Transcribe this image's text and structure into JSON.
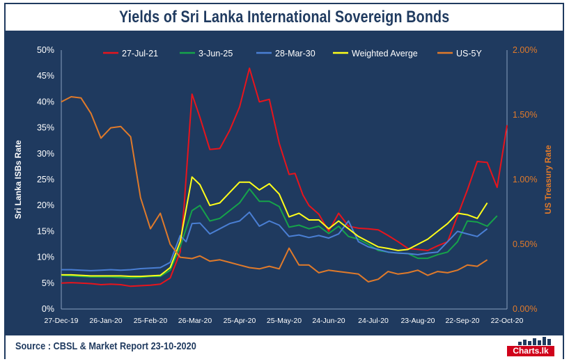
{
  "header": {
    "title": "Yields of Sri Lanka International Sovereign Bonds"
  },
  "footer": {
    "source": "Source : CBSL & Market Report 23-10-2020",
    "logo_text": "Charts.lk"
  },
  "colors": {
    "background": "#1f3a5f",
    "red": "#e8141c",
    "green": "#16a34a",
    "blue": "#4a7fd4",
    "yellow": "#ffff1a",
    "orange": "#e07a2a"
  },
  "chart_data": {
    "type": "line",
    "title": "Yields of Sri Lanka International Sovereign Bonds",
    "ylabel": "Sri Lanka ISBs Rate",
    "y2label": "US Treasury Rate",
    "ylim": [
      0,
      50
    ],
    "y2lim": [
      0,
      2.0
    ],
    "yticks": [
      "0%",
      "5%",
      "10%",
      "15%",
      "20%",
      "25%",
      "30%",
      "35%",
      "40%",
      "45%",
      "50%"
    ],
    "y2ticks": [
      "0.00%",
      "0.50%",
      "1.00%",
      "1.50%",
      "2.00%"
    ],
    "xticks": [
      "27-Dec-19",
      "26-Jan-20",
      "25-Feb-20",
      "26-Mar-20",
      "25-Apr-20",
      "25-May-20",
      "24-Jun-20",
      "24-Jul-20",
      "23-Aug-20",
      "22-Sep-20",
      "22-Oct-20"
    ],
    "legend_position": "top",
    "grid": false,
    "series": [
      {
        "name": "27-Jul-21",
        "color": "#e8141c",
        "axis": "left",
        "x": [
          0,
          5,
          10,
          15,
          20,
          25,
          30,
          35,
          40,
          45,
          50,
          55,
          60,
          62,
          66,
          70,
          75,
          80,
          85,
          90,
          95,
          100,
          105,
          110,
          115,
          118,
          122,
          125,
          130,
          135,
          140,
          145,
          150,
          155,
          160,
          165,
          170,
          175,
          180,
          185,
          190,
          195,
          200,
          205,
          210,
          215,
          220,
          225,
          230,
          235,
          240,
          245,
          250,
          255,
          260,
          265,
          270,
          275,
          280,
          285,
          290,
          295,
          300
        ],
        "values": [
          5.0,
          5.1,
          5.0,
          4.9,
          4.7,
          4.8,
          4.7,
          4.4,
          4.5,
          4.6,
          4.8,
          6.0,
          11.0,
          20.0,
          41.5,
          37.0,
          30.8,
          31.0,
          34.5,
          39.0,
          46.5,
          40.0,
          40.5,
          32.0,
          26.0,
          26.2,
          22.0,
          20.0,
          18.3,
          15.0,
          18.5,
          16.0,
          15.6,
          15.5,
          15.3,
          14.2,
          13.0,
          11.7,
          11.5,
          11.3,
          12.2,
          13.0,
          18.0,
          23.0,
          28.5,
          28.3,
          23.5,
          35.5,
          null,
          null,
          null,
          null,
          null,
          null,
          null,
          null,
          null,
          null,
          null,
          null,
          null,
          null,
          null
        ]
      },
      {
        "name": "3-Jun-25",
        "color": "#16a34a",
        "axis": "left",
        "x": [
          0,
          5,
          10,
          15,
          20,
          25,
          30,
          35,
          40,
          45,
          50,
          55,
          60,
          66,
          70,
          75,
          80,
          85,
          90,
          95,
          100,
          105,
          110,
          115,
          120,
          125,
          130,
          135,
          140,
          145,
          150,
          155,
          160,
          165,
          170,
          175,
          180,
          185,
          190,
          195,
          200,
          205,
          210,
          215,
          220,
          225,
          230,
          235,
          240
        ],
        "values": [
          6.5,
          6.4,
          6.3,
          6.2,
          6.2,
          6.2,
          6.1,
          6.0,
          6.1,
          6.3,
          6.3,
          7.5,
          12.0,
          19.0,
          20.0,
          17.0,
          17.5,
          19.0,
          20.5,
          23.2,
          20.8,
          20.8,
          19.8,
          15.8,
          16.2,
          15.5,
          16.0,
          14.6,
          16.0,
          14.0,
          13.5,
          12.5,
          11.3,
          11.0,
          10.8,
          10.7,
          9.8,
          9.8,
          10.5,
          11.0,
          13.0,
          17.0,
          16.8,
          16.0,
          18.0,
          null,
          null,
          null,
          null
        ]
      },
      {
        "name": "28-Mar-30",
        "color": "#4a7fd4",
        "axis": "left",
        "x": [
          0,
          5,
          10,
          15,
          20,
          25,
          30,
          35,
          40,
          45,
          50,
          55,
          60,
          63,
          66,
          70,
          75,
          80,
          85,
          90,
          95,
          100,
          105,
          110,
          115,
          120,
          125,
          130,
          135,
          140,
          145,
          150,
          155,
          160,
          165,
          170,
          175,
          180,
          185,
          190,
          195,
          200,
          205,
          210,
          215,
          220,
          225
        ],
        "values": [
          7.6,
          7.6,
          7.5,
          7.4,
          7.5,
          7.6,
          7.5,
          7.6,
          7.8,
          7.9,
          8.0,
          9.0,
          14.2,
          13.0,
          16.5,
          16.6,
          14.5,
          15.5,
          16.5,
          17.0,
          18.7,
          16.0,
          17.0,
          16.2,
          14.0,
          14.3,
          13.8,
          14.2,
          13.7,
          14.5,
          17.0,
          13.0,
          12.0,
          11.5,
          11.0,
          10.8,
          10.7,
          10.5,
          10.8,
          11.0,
          13.0,
          15.0,
          14.5,
          14.0,
          15.5,
          null,
          null
        ]
      },
      {
        "name": "Weighted Averge",
        "color": "#ffff1a",
        "axis": "left",
        "x": [
          0,
          5,
          10,
          15,
          20,
          25,
          30,
          35,
          40,
          45,
          50,
          55,
          60,
          66,
          70,
          75,
          80,
          85,
          90,
          95,
          100,
          105,
          110,
          115,
          120,
          125,
          130,
          135,
          140,
          145,
          150,
          155,
          160,
          165,
          170,
          175,
          180,
          185,
          190,
          195,
          200,
          205,
          210,
          215,
          220,
          225
        ],
        "values": [
          6.6,
          6.6,
          6.5,
          6.4,
          6.4,
          6.4,
          6.4,
          6.3,
          6.3,
          6.4,
          6.5,
          8.0,
          13.0,
          25.5,
          24.0,
          20.0,
          20.5,
          22.5,
          24.5,
          24.5,
          23.0,
          24.2,
          22.2,
          17.8,
          18.5,
          17.2,
          17.2,
          15.5,
          17.0,
          15.5,
          14.0,
          13.0,
          12.0,
          11.7,
          11.3,
          11.5,
          12.5,
          13.5,
          15.0,
          16.5,
          18.5,
          18.2,
          17.5,
          20.5,
          null,
          null
        ]
      },
      {
        "name": "US-5Y",
        "color": "#e07a2a",
        "axis": "right",
        "x": [
          0,
          5,
          10,
          15,
          20,
          25,
          30,
          35,
          40,
          45,
          50,
          55,
          60,
          66,
          70,
          75,
          80,
          85,
          90,
          95,
          100,
          105,
          110,
          115,
          120,
          125,
          130,
          135,
          140,
          145,
          150,
          155,
          160,
          165,
          170,
          175,
          180,
          185,
          190,
          195,
          200,
          205,
          210,
          215,
          220,
          225
        ],
        "values": [
          1.6,
          1.64,
          1.63,
          1.51,
          1.32,
          1.4,
          1.41,
          1.33,
          0.86,
          0.62,
          0.74,
          0.5,
          0.4,
          0.39,
          0.41,
          0.37,
          0.38,
          0.36,
          0.34,
          0.32,
          0.31,
          0.33,
          0.31,
          0.47,
          0.34,
          0.34,
          0.28,
          0.3,
          0.29,
          0.28,
          0.27,
          0.21,
          0.23,
          0.29,
          0.27,
          0.28,
          0.3,
          0.26,
          0.29,
          0.28,
          0.3,
          0.34,
          0.33,
          0.38,
          null,
          null
        ]
      }
    ]
  }
}
